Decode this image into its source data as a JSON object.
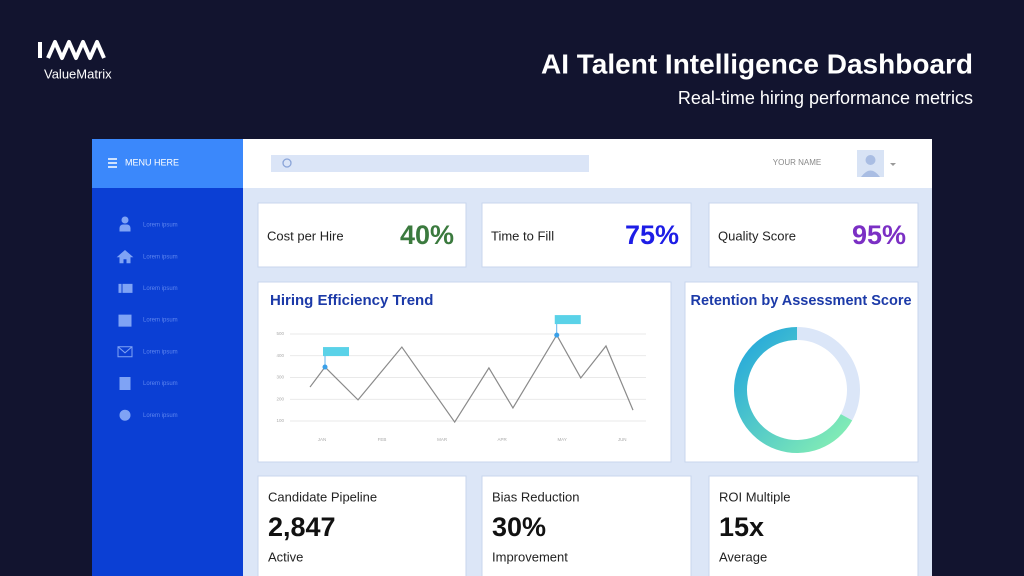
{
  "header": {
    "brand": "ValueMatrix",
    "title": "AI Talent Intelligence Dashboard",
    "subtitle": "Real-time hiring performance metrics"
  },
  "sidebar": {
    "menu": "MENU HERE",
    "items": [
      "Lorem ipsum",
      "Lorem ipsum",
      "Lorem ipsum",
      "Lorem ipsum",
      "Lorem ipsum",
      "Lorem ipsum",
      "Lorem ipsum"
    ]
  },
  "topbar": {
    "user": "YOUR NAME"
  },
  "kpis": [
    {
      "label": "Cost per Hire",
      "value": "40%",
      "color": "#3b7a3e"
    },
    {
      "label": "Time to Fill",
      "value": "75%",
      "color": "#1d1de6"
    },
    {
      "label": "Quality Score",
      "value": "95%",
      "color": "#7b2fc4"
    }
  ],
  "trend": {
    "title": "Hiring Efficiency Trend",
    "x": [
      -0.2,
      0.05,
      0.6,
      1.33,
      2.21,
      2.78,
      3.18,
      3.91,
      4.31,
      4.73,
      5.18
    ],
    "values": [
      256,
      348,
      197,
      440,
      95,
      344,
      160,
      495,
      298,
      445,
      150
    ],
    "xlim": [
      -0.2,
      5.18
    ],
    "ylim": [
      100,
      500
    ],
    "xticks": [
      {
        "value": 0,
        "label": "JAN"
      },
      {
        "value": 1,
        "label": "FEB"
      },
      {
        "value": 2,
        "label": "MAR"
      },
      {
        "value": 3,
        "label": "APR"
      },
      {
        "value": 4,
        "label": "MAY"
      },
      {
        "value": 5,
        "label": "JUN"
      }
    ],
    "yticks": [
      100,
      200,
      300,
      400,
      500
    ],
    "highlight": [
      1,
      7
    ],
    "color": "#8a8a8a"
  },
  "retention": {
    "title": "Retention by Assessment Score",
    "values": [
      33,
      67
    ],
    "colors": [
      "#dbe6f8",
      "url(#donutGrad)"
    ]
  },
  "stats": [
    {
      "label": "Candidate Pipeline",
      "value": "2,847",
      "note": "Active"
    },
    {
      "label": "Bias Reduction",
      "value": "30%",
      "note": "Improvement"
    },
    {
      "label": "ROI Multiple",
      "value": "15x",
      "note": "Average"
    }
  ]
}
